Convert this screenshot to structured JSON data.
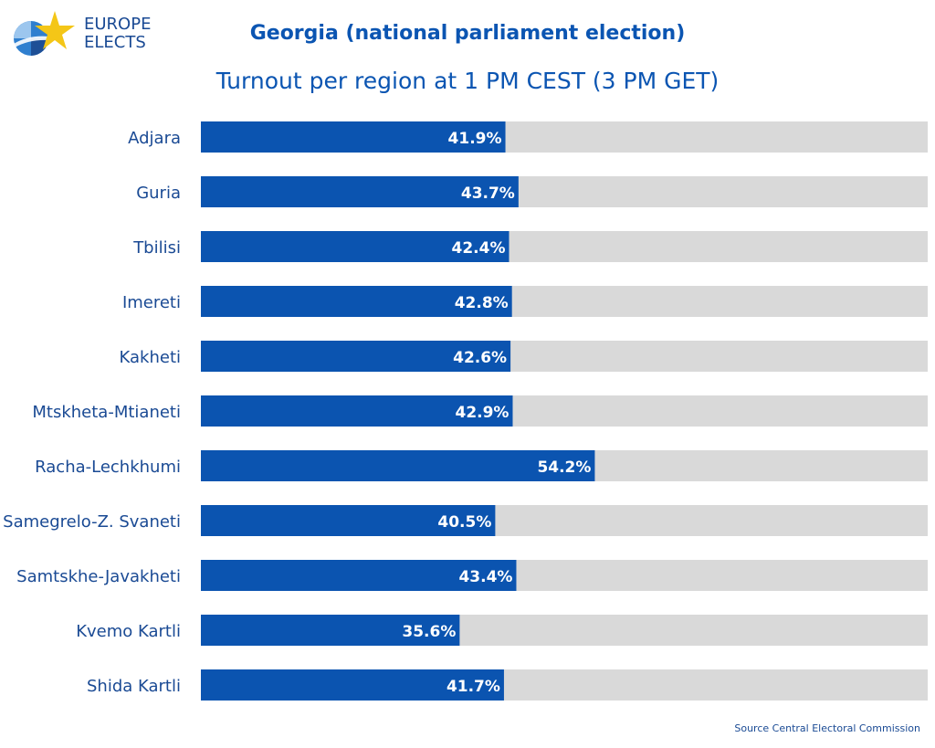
{
  "logo": {
    "line1": "EUROPE",
    "line2": "ELECTS",
    "icon": "europe-elects-star-logo"
  },
  "colors": {
    "bar": "#0b54b0",
    "track": "#d9d9d9",
    "title": "#0b55b2",
    "label": "#1a4a94",
    "value_text": "#ffffff"
  },
  "chart_data": {
    "type": "bar",
    "orientation": "horizontal",
    "title": "Georgia (national parliament election)",
    "subtitle": "Turnout per region at 1 PM CEST (3 PM GET)",
    "categories": [
      "Adjara",
      "Guria",
      "Tbilisi",
      "Imereti",
      "Kakheti",
      "Mtskheta-Mtianeti",
      "Racha-Lechkhumi",
      "Samegrelo-Z. Svaneti",
      "Samtskhe-Javakheti",
      "Kvemo Kartli",
      "Shida Kartli"
    ],
    "values": [
      41.9,
      43.7,
      42.4,
      42.8,
      42.6,
      42.9,
      54.2,
      40.5,
      43.4,
      35.6,
      41.7
    ],
    "value_labels": [
      "41.9%",
      "43.7%",
      "42.4%",
      "42.8%",
      "42.6%",
      "42.9%",
      "54.2%",
      "40.5%",
      "43.4%",
      "35.6%",
      "41.7%"
    ],
    "xlim": [
      0,
      100
    ],
    "grid": false,
    "legend": "none"
  },
  "source": "Source Central Electoral Commission"
}
